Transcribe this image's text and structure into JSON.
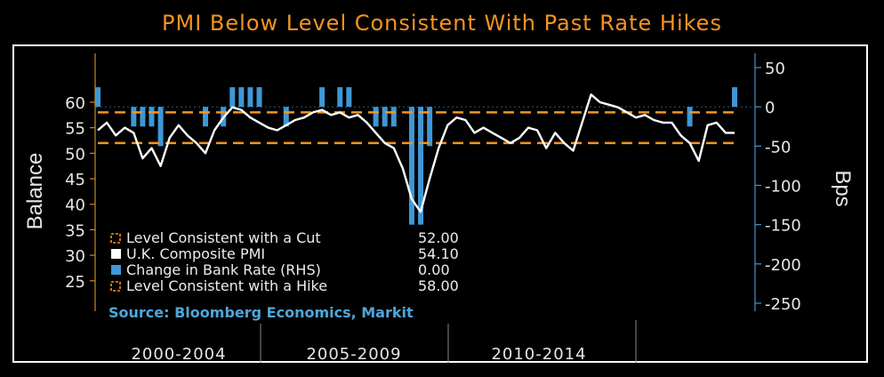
{
  "title": "PMI Below Level Consistent With Past Rate Hikes",
  "colors": {
    "title": "#f5941f",
    "pmi_line": "#ffffff",
    "threshold_line": "#f5941f",
    "bank_rate_bar": "#3e97d6",
    "axis_right": "#3e97d6",
    "source_text": "#4fa7d8"
  },
  "chart_data": {
    "type": "line",
    "title": "PMI Below Level Consistent With Past Rate Hikes",
    "ylabel": "Balance",
    "y2label": "Bps",
    "ylim": [
      22,
      64
    ],
    "y2lim": [
      -262,
      62
    ],
    "yticks": [
      "60",
      "55",
      "50",
      "45",
      "40",
      "35",
      "30",
      "25"
    ],
    "y2ticks": [
      "50",
      "0",
      "-50",
      "-100",
      "-150",
      "-200",
      "-250"
    ],
    "x_periods": [
      "2000-2004",
      "2005-2009",
      "2010-2014"
    ],
    "grid": false,
    "legend_position": "bottom-left",
    "legend": [
      {
        "label": "Level Consistent with a Cut",
        "value": "52.00",
        "marker": "dashed-orange"
      },
      {
        "label": "U.K. Composite PMI",
        "value": "54.10",
        "marker": "white"
      },
      {
        "label": "Change in Bank Rate (RHS)",
        "value": "0.00",
        "marker": "blue"
      },
      {
        "label": "Level Consistent with a Hike",
        "value": "58.00",
        "marker": "dashed-orange"
      }
    ],
    "x": [
      "2000-01",
      "2000-04",
      "2000-07",
      "2000-10",
      "2001-01",
      "2001-04",
      "2001-07",
      "2001-10",
      "2002-01",
      "2002-04",
      "2002-07",
      "2002-10",
      "2003-01",
      "2003-04",
      "2003-07",
      "2003-10",
      "2004-01",
      "2004-04",
      "2004-07",
      "2004-10",
      "2005-01",
      "2005-04",
      "2005-07",
      "2005-10",
      "2006-01",
      "2006-04",
      "2006-07",
      "2006-10",
      "2007-01",
      "2007-04",
      "2007-07",
      "2007-10",
      "2008-01",
      "2008-04",
      "2008-07",
      "2008-10",
      "2009-01",
      "2009-04",
      "2009-07",
      "2009-10",
      "2010-01",
      "2010-04",
      "2010-07",
      "2010-10",
      "2011-01",
      "2011-04",
      "2011-07",
      "2011-10",
      "2012-01",
      "2012-04",
      "2012-07",
      "2012-10",
      "2013-01",
      "2013-04",
      "2013-07",
      "2013-10",
      "2014-01",
      "2014-04",
      "2014-07",
      "2014-10",
      "2015-01",
      "2015-04",
      "2015-07",
      "2015-10",
      "2016-01",
      "2016-04",
      "2016-07",
      "2016-10",
      "2017-01",
      "2017-04",
      "2017-07",
      "2017-10"
    ],
    "series": [
      {
        "name": "U.K. Composite PMI",
        "axis": "left",
        "values": [
          54.5,
          56,
          53.5,
          55,
          54,
          49,
          51,
          47.5,
          53,
          55.5,
          53.5,
          52,
          50,
          54.5,
          57,
          59,
          58.5,
          57,
          56,
          55,
          54.5,
          55.5,
          56.5,
          57,
          58,
          58.5,
          57.5,
          58,
          57,
          57.5,
          56,
          54,
          52,
          51,
          47,
          41,
          38.5,
          45,
          51,
          55.5,
          57,
          56.5,
          54,
          55,
          54,
          53,
          52,
          53,
          55,
          54.5,
          51,
          54,
          52,
          50.5,
          56,
          61.5,
          60,
          59.5,
          59,
          58,
          57,
          57.5,
          56.5,
          56,
          56,
          53.5,
          52,
          48.5,
          55.5,
          56,
          54,
          54
        ],
        "color": "#ffffff"
      },
      {
        "name": "Change in Bank Rate (RHS)",
        "axis": "right",
        "type": "bar",
        "values": [
          25,
          0,
          0,
          0,
          -25,
          -25,
          -25,
          -50,
          0,
          0,
          0,
          0,
          -25,
          0,
          -25,
          25,
          25,
          25,
          25,
          0,
          0,
          -25,
          0,
          0,
          0,
          25,
          0,
          25,
          25,
          0,
          0,
          -25,
          -25,
          -25,
          0,
          -150,
          -150,
          -50,
          0,
          0,
          0,
          0,
          0,
          0,
          0,
          0,
          0,
          0,
          0,
          0,
          0,
          0,
          0,
          0,
          0,
          0,
          0,
          0,
          0,
          0,
          0,
          0,
          0,
          0,
          0,
          0,
          -25,
          0,
          0,
          0,
          0,
          25
        ],
        "color": "#3e97d6"
      }
    ],
    "thresholds": [
      {
        "name": "Level Consistent with a Cut",
        "value": 52.0
      },
      {
        "name": "Level Consistent with a Hike",
        "value": 58.0
      }
    ]
  },
  "source": "Source: Bloomberg Economics, Markit"
}
